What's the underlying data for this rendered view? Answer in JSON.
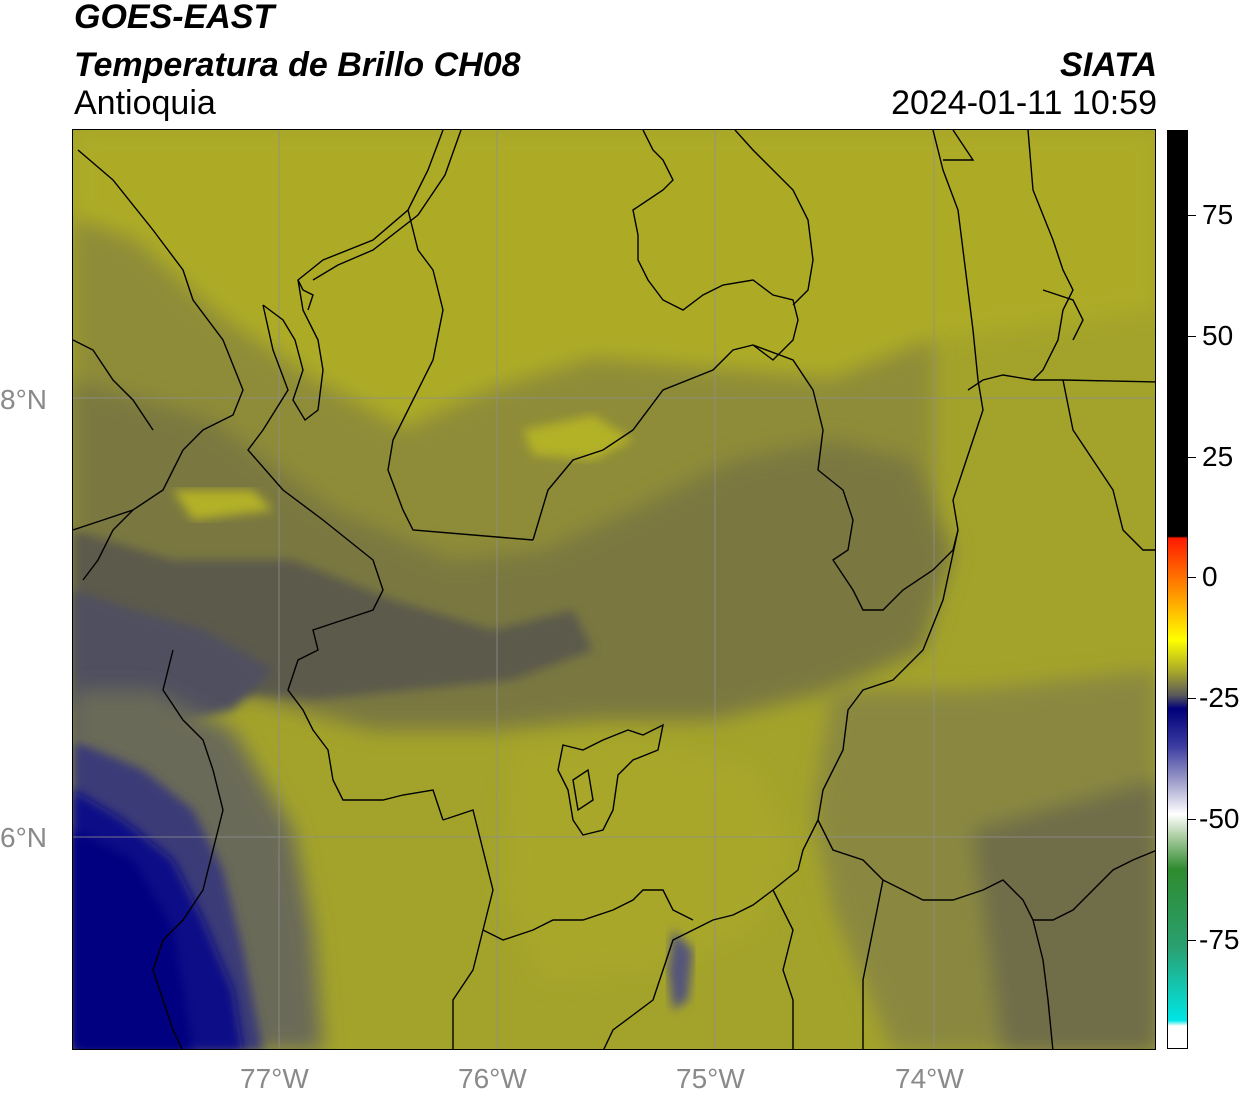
{
  "header": {
    "satellite": "GOES-EAST",
    "product": "Temperatura de Brillo CH08",
    "organization": "SIATA",
    "region": "Antioquia",
    "datetime": "2024-01-11 10:59"
  },
  "map": {
    "lat_labels": [
      "8°N",
      "6°N"
    ],
    "lon_labels": [
      "77°W",
      "76°W",
      "75°W",
      "74°W"
    ],
    "gridline_color": "#8f8f8f",
    "border_color": "#000000"
  },
  "colorbar": {
    "tick_labels": [
      "75",
      "50",
      "25",
      "0",
      "-25",
      "-50",
      "-75"
    ],
    "colors": {
      "top": "#000000",
      "warm_red": "#ff1a00",
      "orange": "#ff8c00",
      "yellow": "#ffff00",
      "olive": "#a6a62a",
      "gray": "#5a5a5a",
      "navy": "#00007a",
      "light": "#ffffff",
      "green": "#2e8b2e",
      "cyan": "#00e6e6"
    }
  }
}
